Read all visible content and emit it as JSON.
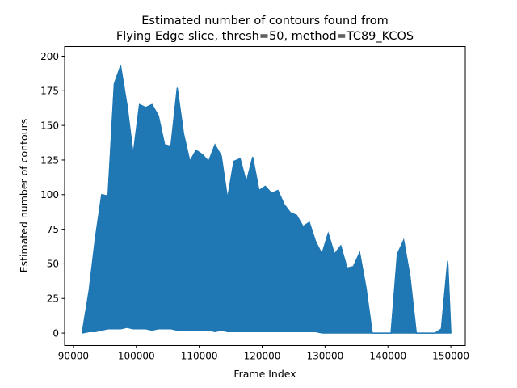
{
  "chart_data": {
    "type": "line",
    "title": [
      "Estimated number of contours found from",
      "Flying Edge slice, thresh=50, method=TC89_KCOS"
    ],
    "xlabel": "Frame Index",
    "ylabel": "Estimated number of contours",
    "xlim": [
      88600,
      152300
    ],
    "ylim": [
      -9,
      207
    ],
    "xticks": [
      90000,
      100000,
      110000,
      120000,
      130000,
      140000,
      150000
    ],
    "xtick_labels": [
      "90000",
      "100000",
      "110000",
      "120000",
      "130000",
      "140000",
      "150000"
    ],
    "yticks": [
      0,
      25,
      50,
      75,
      100,
      125,
      150,
      175,
      200
    ],
    "ytick_labels": [
      "0",
      "25",
      "50",
      "75",
      "100",
      "125",
      "150",
      "175",
      "200"
    ],
    "grid": false,
    "legend": "none",
    "series_color": "#1f77b4",
    "series": [
      {
        "x": [
          91500,
          92500,
          93500,
          94500,
          95500,
          96500,
          97500,
          98500,
          99500,
          100500,
          101500,
          102500,
          103500,
          104500,
          105500,
          106500,
          107500,
          108500,
          109500,
          110500,
          111500,
          112500,
          113500,
          114500,
          115500,
          116500,
          117500,
          118500,
          119500,
          120500,
          121500,
          122500,
          123500,
          124500,
          125500,
          126500,
          127500,
          128500,
          129500,
          130500,
          131500,
          132500,
          133500,
          134500,
          135500,
          136500,
          137500,
          138500,
          139500,
          140500,
          141500,
          142500,
          143500,
          144500,
          145500,
          146500,
          147500,
          148500,
          149500,
          150000
        ],
        "max": [
          3,
          31,
          69,
          100,
          99,
          180,
          193,
          165,
          129,
          165,
          163,
          165,
          157,
          136,
          135,
          177,
          144,
          124,
          132,
          129,
          124,
          136,
          128,
          97,
          124,
          126,
          109,
          127,
          103,
          106,
          101,
          103,
          93,
          87,
          85,
          77,
          80,
          66,
          57,
          72,
          57,
          63,
          47,
          48,
          58,
          33,
          0,
          0,
          0,
          0,
          57,
          67,
          41,
          0,
          0,
          0,
          0,
          3,
          52,
          0
        ],
        "min": [
          0,
          1,
          1,
          2,
          3,
          3,
          3,
          4,
          3,
          3,
          3,
          2,
          3,
          3,
          3,
          2,
          2,
          2,
          2,
          2,
          2,
          1,
          2,
          1,
          1,
          1,
          1,
          1,
          1,
          1,
          1,
          1,
          1,
          1,
          1,
          1,
          1,
          1,
          0,
          0,
          0,
          0,
          0,
          0,
          0,
          0,
          0,
          0,
          0,
          0,
          0,
          0,
          0,
          0,
          0,
          0,
          0,
          0,
          0,
          0
        ]
      }
    ]
  }
}
